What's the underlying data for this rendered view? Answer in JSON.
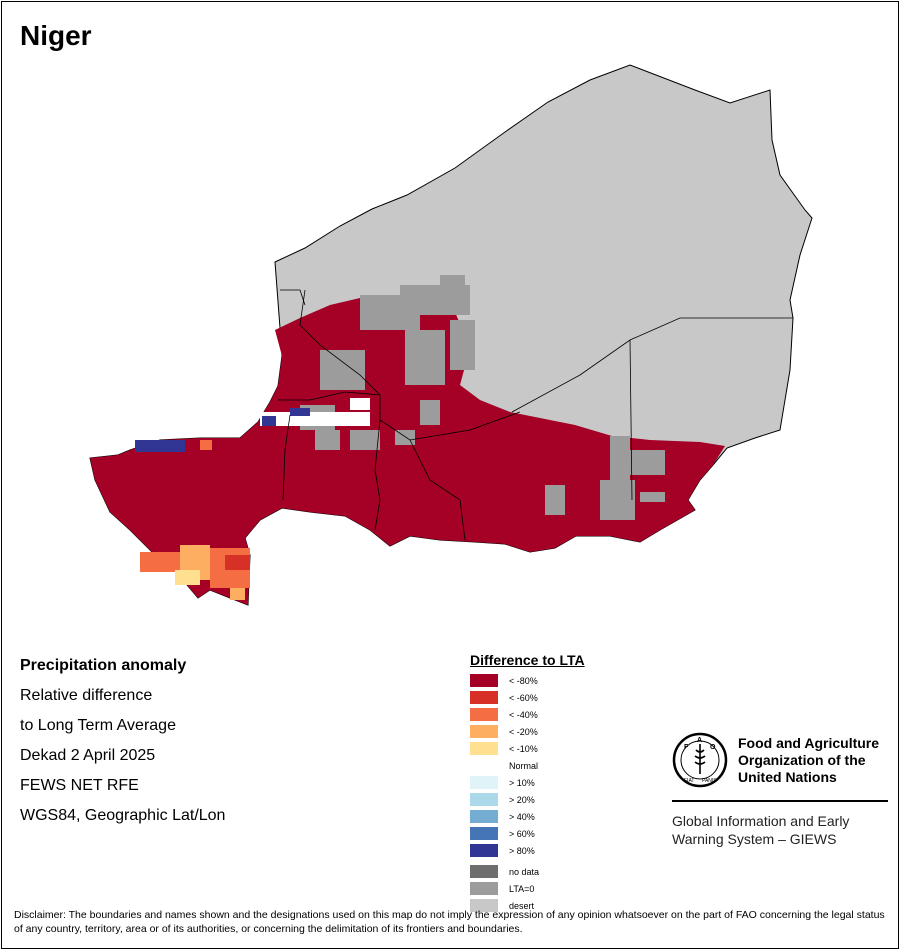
{
  "map": {
    "title": "Niger",
    "layers": [
      "Precipitation anomaly",
      "Relative difference to Long Term Average"
    ]
  },
  "info": {
    "heading": "Precipitation anomaly",
    "line1": "Relative difference",
    "line2": "to Long Term Average",
    "period": "Dekad 2 April 2025",
    "source": "FEWS NET RFE",
    "projection": "WGS84, Geographic Lat/Lon"
  },
  "legend": {
    "title": "Difference to LTA",
    "items": [
      {
        "label": "< -80%",
        "color": "#a50026"
      },
      {
        "label": "< -60%",
        "color": "#d73027"
      },
      {
        "label": "< -40%",
        "color": "#f46d43"
      },
      {
        "label": "< -20%",
        "color": "#fdae61"
      },
      {
        "label": "< -10%",
        "color": "#fee090"
      }
    ],
    "normal": "Normal",
    "items_positive": [
      {
        "label": "> 10%",
        "color": "#e0f3f8"
      },
      {
        "label": "> 20%",
        "color": "#abd9e9"
      },
      {
        "label": "> 40%",
        "color": "#74add1"
      },
      {
        "label": "> 60%",
        "color": "#4575b4"
      },
      {
        "label": "> 80%",
        "color": "#313695"
      }
    ],
    "items_other": [
      {
        "label": "no data",
        "color": "#6e6e6e"
      },
      {
        "label": "LTA=0",
        "color": "#9c9c9c"
      },
      {
        "label": "desert",
        "color": "#c8c8c8"
      }
    ]
  },
  "fao": {
    "logo_text": "FAO",
    "logo_motto": "FIAT PANIS",
    "name_line1": "Food and Agriculture",
    "name_line2": "Organization of the",
    "name_line3": "United Nations",
    "sub_line1": "Global Information and Early",
    "sub_line2": "Warning System – GIEWS"
  },
  "disclaimer": "Disclaimer: The boundaries and names shown and the designations used on this map do not imply the expression of any opinion whatsoever on the part of FAO concerning the legal status of any country, territory, area or of its authorities, or concerning the delimitation of its frontiers and boundaries."
}
